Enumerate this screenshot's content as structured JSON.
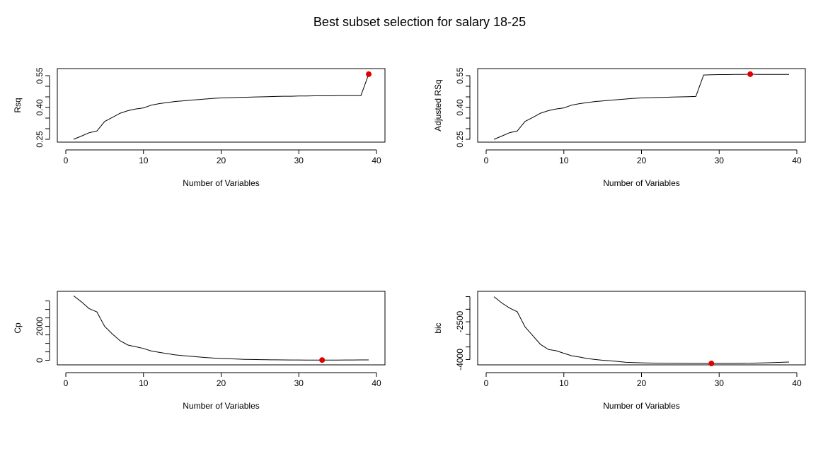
{
  "title": "Best subset selection for salary 18-25",
  "colors": {
    "line": "#000000",
    "marker": "#e00000",
    "frame": "#000000"
  },
  "chart_data": [
    {
      "type": "line",
      "xlabel": "Number of Variables",
      "ylabel": "Rsq",
      "xlim": [
        0,
        40
      ],
      "ylim": [
        0.25,
        0.57
      ],
      "xticks": [
        0,
        10,
        20,
        30,
        40
      ],
      "yticks": [
        0.25,
        0.4,
        0.55
      ],
      "ytick_labels": [
        "0.25",
        "0.40",
        "0.55"
      ],
      "yticks_minor": [
        0.3,
        0.35,
        0.45,
        0.5
      ],
      "x": [
        1,
        2,
        3,
        4,
        5,
        6,
        7,
        8,
        9,
        10,
        11,
        12,
        13,
        14,
        15,
        16,
        17,
        18,
        19,
        20,
        21,
        22,
        23,
        24,
        25,
        26,
        27,
        28,
        29,
        30,
        31,
        32,
        33,
        34,
        35,
        36,
        37,
        38,
        39
      ],
      "values": [
        0.25,
        0.265,
        0.281,
        0.289,
        0.334,
        0.353,
        0.373,
        0.385,
        0.393,
        0.398,
        0.411,
        0.418,
        0.423,
        0.428,
        0.431,
        0.434,
        0.437,
        0.44,
        0.443,
        0.445,
        0.446,
        0.447,
        0.448,
        0.449,
        0.45,
        0.451,
        0.452,
        0.453,
        0.453,
        0.454,
        0.454,
        0.455,
        0.455,
        0.455,
        0.456,
        0.456,
        0.456,
        0.456,
        0.557
      ],
      "highlight": {
        "x": 39,
        "y": 0.557
      }
    },
    {
      "type": "line",
      "xlabel": "Number of Variables",
      "ylabel": "Adjusted RSq",
      "xlim": [
        0,
        40
      ],
      "ylim": [
        0.25,
        0.57
      ],
      "xticks": [
        0,
        10,
        20,
        30,
        40
      ],
      "yticks": [
        0.25,
        0.4,
        0.55
      ],
      "ytick_labels": [
        "0.25",
        "0.40",
        "0.55"
      ],
      "yticks_minor": [
        0.3,
        0.35,
        0.45,
        0.5
      ],
      "x": [
        1,
        2,
        3,
        4,
        5,
        6,
        7,
        8,
        9,
        10,
        11,
        12,
        13,
        14,
        15,
        16,
        17,
        18,
        19,
        20,
        21,
        22,
        23,
        24,
        25,
        26,
        27,
        28,
        29,
        30,
        31,
        32,
        33,
        34,
        35,
        36,
        37,
        38,
        39
      ],
      "values": [
        0.25,
        0.265,
        0.281,
        0.289,
        0.334,
        0.353,
        0.373,
        0.385,
        0.393,
        0.398,
        0.411,
        0.418,
        0.423,
        0.428,
        0.431,
        0.434,
        0.437,
        0.44,
        0.443,
        0.445,
        0.446,
        0.447,
        0.448,
        0.449,
        0.45,
        0.451,
        0.452,
        0.553,
        0.554,
        0.555,
        0.555,
        0.556,
        0.556,
        0.557,
        0.556,
        0.556,
        0.556,
        0.556,
        0.556
      ],
      "highlight": {
        "x": 34,
        "y": 0.557
      }
    },
    {
      "type": "line",
      "xlabel": "Number of Variables",
      "ylabel": "Cp",
      "xlim": [
        0,
        40
      ],
      "ylim": [
        -100,
        3900
      ],
      "xticks": [
        0,
        10,
        20,
        30,
        40
      ],
      "yticks": [
        0,
        2000
      ],
      "ytick_labels": [
        "0",
        "2000"
      ],
      "yticks_minor": [
        500,
        1000,
        1500,
        2500,
        3000,
        3500
      ],
      "x": [
        1,
        2,
        3,
        4,
        5,
        6,
        7,
        8,
        9,
        10,
        11,
        12,
        13,
        14,
        15,
        16,
        17,
        18,
        19,
        20,
        21,
        22,
        23,
        24,
        25,
        26,
        27,
        28,
        29,
        30,
        31,
        32,
        33,
        34,
        35,
        36,
        37,
        38,
        39
      ],
      "values": [
        3800,
        3450,
        3050,
        2850,
        2000,
        1550,
        1150,
        900,
        800,
        700,
        550,
        470,
        400,
        330,
        280,
        240,
        200,
        165,
        135,
        110,
        90,
        75,
        60,
        50,
        42,
        35,
        30,
        25,
        22,
        20,
        18,
        17,
        16,
        17,
        18,
        20,
        22,
        24,
        26
      ],
      "highlight": {
        "x": 33,
        "y": 16
      }
    },
    {
      "type": "line",
      "xlabel": "Number of Variables",
      "ylabel": "bic",
      "xlim": [
        0,
        40
      ],
      "ylim": [
        -4100,
        -1400
      ],
      "xticks": [
        0,
        10,
        20,
        30,
        40
      ],
      "yticks": [
        -4000,
        -2500
      ],
      "ytick_labels": [
        "-4000",
        "-2500"
      ],
      "yticks_minor": [
        -3500,
        -3000,
        -2000,
        -1500
      ],
      "x": [
        1,
        2,
        3,
        4,
        5,
        6,
        7,
        8,
        9,
        10,
        11,
        12,
        13,
        14,
        15,
        16,
        17,
        18,
        19,
        20,
        21,
        22,
        23,
        24,
        25,
        26,
        27,
        28,
        29,
        30,
        31,
        32,
        33,
        34,
        35,
        36,
        37,
        38,
        39
      ],
      "values": [
        -1500,
        -1750,
        -1950,
        -2100,
        -2700,
        -3050,
        -3400,
        -3600,
        -3650,
        -3750,
        -3850,
        -3900,
        -3960,
        -4000,
        -4030,
        -4050,
        -4080,
        -4110,
        -4120,
        -4130,
        -4140,
        -4145,
        -4150,
        -4152,
        -4154,
        -4155,
        -4156,
        -4157,
        -4158,
        -4157,
        -4156,
        -4155,
        -4153,
        -4150,
        -4140,
        -4130,
        -4120,
        -4110,
        -4100
      ],
      "highlight": {
        "x": 29,
        "y": -4158
      }
    }
  ]
}
